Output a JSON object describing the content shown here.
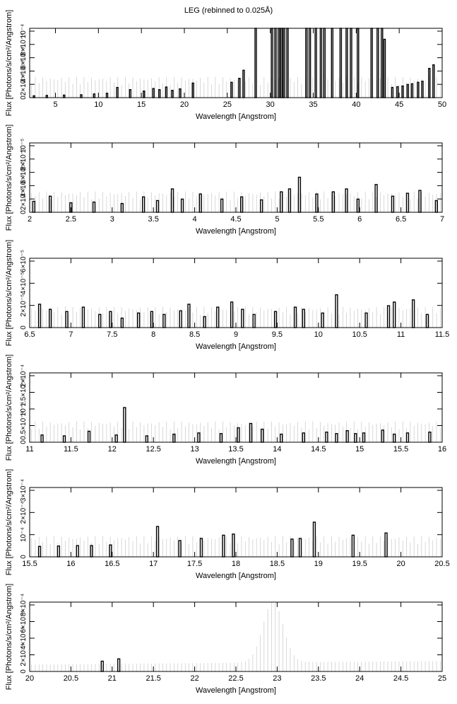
{
  "title": "LEG (rebinned to 0.025Å)",
  "chart_data": [
    {
      "type": "bar",
      "title": "LEG (rebinned to 0.025Å)",
      "xlabel": "Wavelength [Angstrom]",
      "ylabel": "Flux [Photons/s/cm²/Angstrom]",
      "xlim": [
        2,
        50
      ],
      "xticks": [
        "5",
        "10",
        "15",
        "20",
        "25",
        "30",
        "35",
        "40",
        "45",
        "50"
      ],
      "ylim": [
        0,
        0.00019
      ],
      "yticks": [
        "0",
        "2×10⁻⁴",
        "4×10⁻⁴",
        "6×10⁻⁴",
        "8×10⁻⁴",
        "10⁻⁴"
      ],
      "x": [
        2.5,
        4,
        6,
        8,
        9.5,
        11,
        12.2,
        13.7,
        15.3,
        16.4,
        17.1,
        17.9,
        18.6,
        19.5,
        21,
        25.5,
        26.4,
        26.9,
        28.3,
        30.2,
        30.6,
        31,
        31.3,
        31.6,
        32,
        34.2,
        34.6,
        35.3,
        35.9,
        36.3,
        37.2,
        38.2,
        38.9,
        39.4,
        40.2,
        41.8,
        42.5,
        43,
        43.3,
        44.2,
        44.8,
        45.4,
        46,
        46.5,
        47.2,
        47.7,
        48.5,
        49
      ],
      "values": [
        5e-06,
        6e-06,
        7e-06,
        8e-06,
        1e-05,
        1.2e-05,
        2.8e-05,
        2.2e-05,
        1.8e-05,
        2.5e-05,
        2.2e-05,
        2.9e-05,
        2e-05,
        2.4e-05,
        4e-05,
        4.2e-05,
        5.3e-05,
        7.5e-05,
        0.00019,
        0.00019,
        0.00019,
        0.00019,
        0.00019,
        0.00019,
        0.00019,
        0.00019,
        0.00019,
        0.00019,
        0.00019,
        0.00019,
        0.00019,
        0.00019,
        0.00019,
        0.00019,
        0.00019,
        0.00019,
        0.00019,
        0.00019,
        0.00016,
        2.8e-05,
        3e-05,
        3.2e-05,
        3.6e-05,
        3.8e-05,
        4.2e-05,
        4.5e-05,
        8e-05,
        9e-05
      ]
    },
    {
      "type": "bar",
      "xlabel": "Wavelength [Angstrom]",
      "ylabel": "Flux [Photons/s/cm²/Angstrom]",
      "xlim": [
        2,
        7
      ],
      "xticks": [
        "2",
        "2.5",
        "3",
        "3.5",
        "4",
        "4.5",
        "5",
        "5.5",
        "6",
        "6.5",
        "7"
      ],
      "ylim": [
        0,
        9.5e-05
      ],
      "yticks": [
        "0",
        "2×10⁻⁵",
        "4×10⁻⁵",
        "6×10⁻⁵",
        "8×10⁻⁵",
        "10⁻⁵"
      ],
      "x": [
        2.05,
        2.25,
        2.5,
        2.78,
        3.12,
        3.38,
        3.55,
        3.73,
        3.85,
        4.07,
        4.33,
        4.57,
        4.81,
        5.05,
        5.15,
        5.27,
        5.48,
        5.68,
        5.84,
        5.98,
        6.2,
        6.4,
        6.58,
        6.73,
        6.93
      ],
      "values": [
        1.5e-05,
        2.2e-05,
        1.3e-05,
        1.4e-05,
        1.2e-05,
        2.1e-05,
        1.6e-05,
        3.2e-05,
        1.8e-05,
        2.5e-05,
        1.8e-05,
        2.1e-05,
        1.7e-05,
        2.8e-05,
        3.2e-05,
        4.8e-05,
        2.5e-05,
        2.8e-05,
        3.2e-05,
        1.8e-05,
        3.8e-05,
        2.2e-05,
        2.6e-05,
        3e-05,
        1.6e-05
      ]
    },
    {
      "type": "bar",
      "xlabel": "Wavelength [Angstrom]",
      "ylabel": "Flux [Photons/s/cm²/Angstrom]",
      "xlim": [
        6.5,
        11.5
      ],
      "xticks": [
        "6.5",
        "7",
        "7.5",
        "8",
        "8.5",
        "9",
        "9.5",
        "10",
        "10.5",
        "11",
        "11.5"
      ],
      "ylim": [
        0,
        9.5e-05
      ],
      "yticks": [
        "0",
        "2×10⁻⁵",
        "4×10⁻⁵",
        "6×10⁻⁵"
      ],
      "x": [
        6.62,
        6.75,
        6.95,
        7.15,
        7.35,
        7.48,
        7.62,
        7.82,
        7.98,
        8.13,
        8.33,
        8.43,
        8.62,
        8.78,
        8.95,
        9.08,
        9.22,
        9.48,
        9.72,
        9.82,
        10.05,
        10.22,
        10.58,
        10.85,
        10.92,
        11.15,
        11.32
      ],
      "values": [
        3.2e-05,
        2.5e-05,
        2.2e-05,
        2.8e-05,
        1.8e-05,
        2.2e-05,
        1.3e-05,
        2e-05,
        2.2e-05,
        1.8e-05,
        2.3e-05,
        3.2e-05,
        1.5e-05,
        2.8e-05,
        3.5e-05,
        2.5e-05,
        1.8e-05,
        2.2e-05,
        2.8e-05,
        2.5e-05,
        2e-05,
        4.5e-05,
        2e-05,
        3e-05,
        3.5e-05,
        3.8e-05,
        1.8e-05
      ]
    },
    {
      "type": "bar",
      "xlabel": "Wavelength [Angstrom]",
      "ylabel": "Flux [Photons/s/cm²/Angstrom]",
      "xlim": [
        11,
        16
      ],
      "xticks": [
        "11",
        "11.5",
        "12",
        "12.5",
        "13",
        "13.5",
        "14",
        "14.5",
        "15",
        "15.5",
        "16"
      ],
      "ylim": [
        0,
        0.00024
      ],
      "yticks": [
        "0",
        "0.5×10⁻⁴",
        "10⁻⁴",
        "1.5×10⁻⁴",
        "2×10⁻⁴"
      ],
      "x": [
        11.15,
        11.42,
        11.72,
        12.05,
        12.15,
        12.42,
        12.75,
        13.05,
        13.32,
        13.53,
        13.68,
        13.82,
        14.05,
        14.32,
        14.6,
        14.72,
        14.85,
        14.95,
        15.05,
        15.28,
        15.42,
        15.58,
        15.85
      ],
      "values": [
        2.5e-05,
        2.2e-05,
        3.8e-05,
        2.5e-05,
        0.00012,
        2.2e-05,
        2.8e-05,
        3.2e-05,
        3e-05,
        5e-05,
        6.5e-05,
        4.5e-05,
        2.8e-05,
        3.2e-05,
        3.5e-05,
        3e-05,
        4e-05,
        3e-05,
        3.2e-05,
        4.2e-05,
        2.8e-05,
        3.2e-05,
        3.5e-05
      ]
    },
    {
      "type": "bar",
      "xlabel": "Wavelength [Angstrom]",
      "ylabel": "Flux [Photons/s/cm²/Angstrom]",
      "xlim": [
        15.5,
        20.5
      ],
      "xticks": [
        "15.5",
        "16",
        "16.5",
        "17",
        "17.5",
        "18",
        "18.5",
        "19",
        "19.5",
        "20",
        "20.5"
      ],
      "ylim": [
        0,
        0.00032
      ],
      "yticks": [
        "0",
        "10⁻⁴",
        "2×10⁻⁴",
        "3×10⁻⁴"
      ],
      "x": [
        15.62,
        15.85,
        16.08,
        16.25,
        16.48,
        17.05,
        17.32,
        17.58,
        17.85,
        17.97,
        18.68,
        18.78,
        18.95,
        19.42,
        19.82
      ],
      "values": [
        4.8e-05,
        5e-05,
        5.2e-05,
        5.2e-05,
        5.5e-05,
        0.00014,
        7.5e-05,
        8.5e-05,
        0.0001,
        0.000105,
        8.2e-05,
        8.5e-05,
        0.00016,
        0.0001,
        0.00011
      ]
    },
    {
      "type": "bar",
      "xlabel": "Wavelength [Angstrom]",
      "ylabel": "Flux [Photons/s/cm²/Angstrom]",
      "xlim": [
        20,
        25
      ],
      "xticks": [
        "20",
        "20.5",
        "21",
        "21.5",
        "22",
        "22.5",
        "23",
        "23.5",
        "24",
        "24.5",
        "25"
      ],
      "ylim": [
        0,
        0.00088
      ],
      "yticks": [
        "0",
        "2×10⁻⁴",
        "4×10⁻⁴",
        "6×10⁻⁴",
        "8×10⁻⁴"
      ],
      "x": [
        20.88,
        21.08
      ],
      "values": [
        0.00013,
        0.00016
      ]
    }
  ]
}
